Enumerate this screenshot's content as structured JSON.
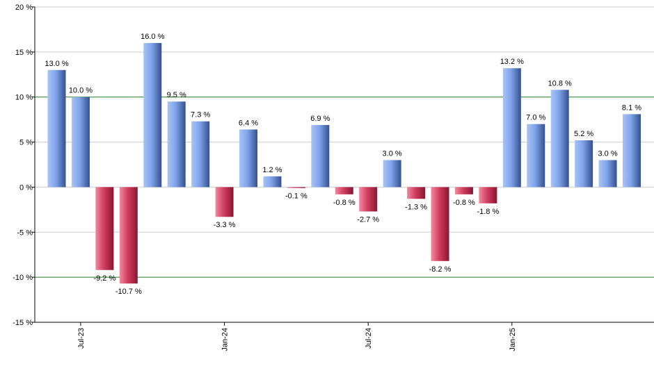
{
  "chart_data": {
    "type": "bar",
    "categories": [
      "",
      "",
      "",
      "",
      "",
      "",
      "",
      "",
      "",
      "",
      "",
      "",
      "",
      "",
      "",
      "",
      "",
      "",
      "",
      "",
      "",
      "",
      "",
      "",
      ""
    ],
    "values": [
      13.0,
      10.0,
      -9.2,
      -10.7,
      16.0,
      9.5,
      7.3,
      -3.3,
      6.4,
      1.2,
      -0.1,
      6.9,
      -0.8,
      -2.7,
      3.0,
      -1.3,
      -8.2,
      -0.8,
      -1.8,
      13.2,
      7.0,
      10.8,
      5.2,
      3.0,
      8.1
    ],
    "data_labels": [
      "13.0 %",
      "10.0 %",
      "-9.2 %",
      "-10.7 %",
      "16.0 %",
      "9.5 %",
      "7.3 %",
      "-3.3 %",
      "6.4 %",
      "1.2 %",
      "-0.1 %",
      "6.9 %",
      "-0.8 %",
      "-2.7 %",
      "3.0 %",
      "-1.3 %",
      "-8.2 %",
      "-0.8 %",
      "-1.8 %",
      "13.2 %",
      "7.0 %",
      "10.8 %",
      "5.2 %",
      "3.0 %",
      "8.1 %"
    ],
    "x_ticks": [
      {
        "label": "Jul-23",
        "index": 1
      },
      {
        "label": "Jan-24",
        "index": 7
      },
      {
        "label": "Jul-24",
        "index": 13
      },
      {
        "label": "Jan-25",
        "index": 19
      }
    ],
    "y_ticks": [
      {
        "value": 20,
        "label": "20 %"
      },
      {
        "value": 15,
        "label": "15 %"
      },
      {
        "value": 10,
        "label": "10 %"
      },
      {
        "value": 5,
        "label": "5 %"
      },
      {
        "value": 0,
        "label": "0 %"
      },
      {
        "value": -5,
        "label": "-5 %"
      },
      {
        "value": -10,
        "label": "-10 %"
      },
      {
        "value": -15,
        "label": "-15 %"
      }
    ],
    "ylim": [
      -15,
      20
    ],
    "reference_lines": [
      10,
      -10
    ],
    "grid": true,
    "title": "",
    "xlabel": "",
    "ylabel": "",
    "colors": {
      "positive": "#6f93dc",
      "negative": "#c43050",
      "reference_line": "#1f7a1f",
      "grid": "#cccccc",
      "axis": "#000000"
    }
  }
}
